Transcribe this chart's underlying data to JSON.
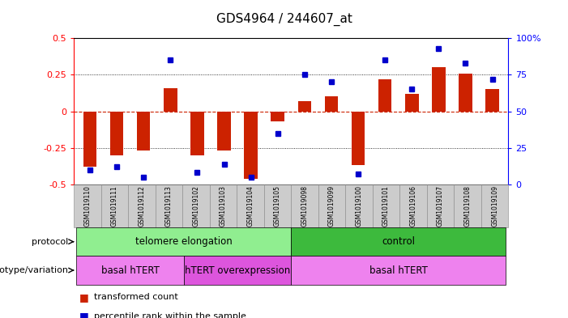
{
  "title": "GDS4964 / 244607_at",
  "samples": [
    "GSM1019110",
    "GSM1019111",
    "GSM1019112",
    "GSM1019113",
    "GSM1019102",
    "GSM1019103",
    "GSM1019104",
    "GSM1019105",
    "GSM1019098",
    "GSM1019099",
    "GSM1019100",
    "GSM1019101",
    "GSM1019106",
    "GSM1019107",
    "GSM1019108",
    "GSM1019109"
  ],
  "transformed_count": [
    -0.38,
    -0.3,
    -0.27,
    0.16,
    -0.3,
    -0.27,
    -0.46,
    -0.07,
    0.07,
    0.1,
    -0.37,
    0.22,
    0.12,
    0.3,
    0.26,
    0.15
  ],
  "percentile_rank": [
    10,
    12,
    5,
    85,
    8,
    14,
    5,
    35,
    75,
    70,
    7,
    85,
    65,
    93,
    83,
    72
  ],
  "protocol_groups": [
    {
      "label": "telomere elongation",
      "start": 0,
      "end": 8,
      "color": "#90ee90"
    },
    {
      "label": "control",
      "start": 8,
      "end": 16,
      "color": "#3dba3d"
    }
  ],
  "genotype_groups": [
    {
      "label": "basal hTERT",
      "start": 0,
      "end": 4,
      "color": "#ee82ee"
    },
    {
      "label": "hTERT overexpression",
      "start": 4,
      "end": 8,
      "color": "#dd55dd"
    },
    {
      "label": "basal hTERT",
      "start": 8,
      "end": 16,
      "color": "#ee82ee"
    }
  ],
  "ylim_left": [
    -0.5,
    0.5
  ],
  "ylim_right": [
    0,
    100
  ],
  "bar_color": "#cc2200",
  "dot_color": "#0000cc",
  "hline_color": "#cc2200",
  "bg_color": "#ffffff",
  "tick_label_bg": "#cccccc"
}
